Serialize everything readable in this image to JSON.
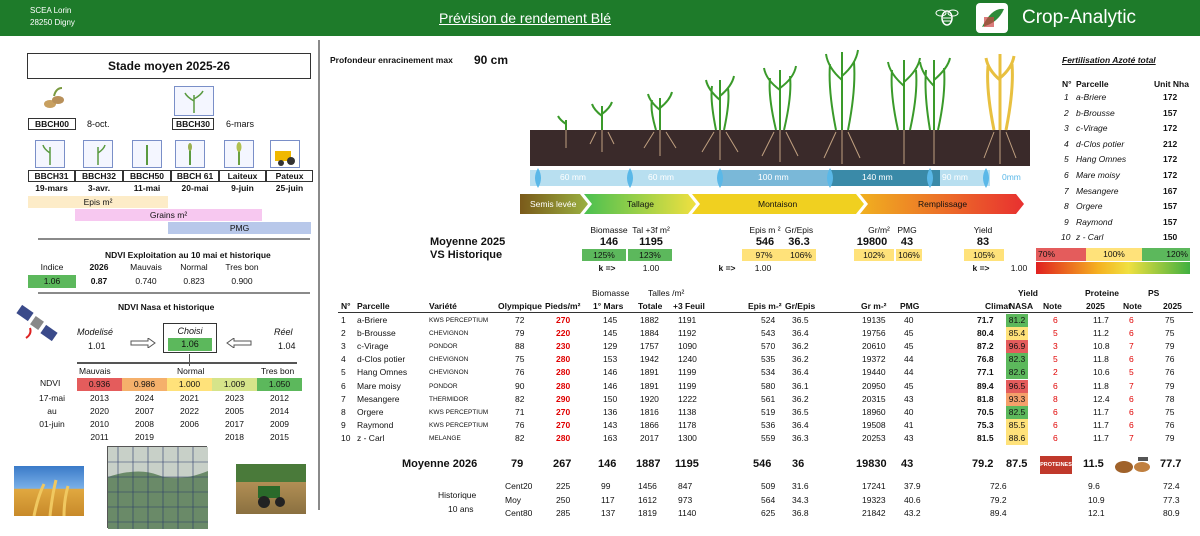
{
  "header": {
    "farm_name": "SCEA Lorin",
    "farm_address": "28250 Digny",
    "title": "Prévision de rendement  Blé",
    "brand": "Crop-Analytic"
  },
  "left": {
    "stage_title": "Stade moyen 2025-26",
    "bbch_top": [
      {
        "code": "BBCH00",
        "date": "8-oct."
      },
      {
        "code": "BBCH30",
        "date": "6-mars"
      }
    ],
    "bbch_row": [
      {
        "code": "BBCH31",
        "date": "19-mars"
      },
      {
        "code": "BBCH32",
        "date": "3-avr."
      },
      {
        "code": "BBCH50",
        "date": "11-mai"
      },
      {
        "code": "BBCH 61",
        "date": "20-mai"
      },
      {
        "code": "Laiteux",
        "date": "9-juin"
      },
      {
        "code": "Pateux",
        "date": "25-juin"
      }
    ],
    "phase_bars": [
      "Epis m²",
      "Grains m²",
      "PMG"
    ],
    "ndvi_title": "NDVI Exploitation au 10 mai et historique",
    "ndvi_headers": [
      "Indice",
      "2026",
      "Mauvais",
      "Normal",
      "Tres bon"
    ],
    "ndvi_values": [
      "1.06",
      "0.87",
      "0.740",
      "0.823",
      "0.900"
    ],
    "nasa_title": "NDVI Nasa  et historique",
    "modelise_label": "Modelisé",
    "modelise_value": "1.01",
    "choisi_label": "Choisi",
    "choisi_value": "1.06",
    "reel_label": "Réel",
    "reel_value": "1.04",
    "scale_labels": [
      "Mauvais",
      "Normal",
      "Tres bon"
    ],
    "ndvi_row_label": "NDVI",
    "ndvi_scale": [
      "0.936",
      "0.986",
      "1.000",
      "1.009",
      "1.050"
    ],
    "period_labels": [
      "17-mai",
      "au",
      "01-juin",
      "",
      ""
    ],
    "years": [
      [
        "2013",
        "2024",
        "2021",
        "2023",
        "2012"
      ],
      [
        "2020",
        "2007",
        "2022",
        "2005",
        "2014"
      ],
      [
        "2010",
        "2008",
        "2006",
        "2017",
        "2009"
      ],
      [
        "2011",
        "2019",
        "",
        "2018",
        "2015"
      ]
    ]
  },
  "center": {
    "root_label": "Profondeur enracinement max",
    "root_value": "90 cm",
    "water_mm": [
      "60 mm",
      "60 mm",
      "100 mm",
      "140 mm",
      "90 mm",
      "0mm"
    ],
    "phases": [
      "Semis levée",
      "Tallage",
      "Montaison",
      "Remplissage"
    ],
    "avg2025_label": "Moyenne 2025",
    "vs_label": "VS Historique",
    "k_label": "k =>",
    "summary_headers": {
      "biomasse": "Biomasse",
      "tal": "Tal +3f m²",
      "epis": "Epis m ²",
      "grepis": "Gr/Epis",
      "grm2": "Gr/m²",
      "pmg": "PMG",
      "yield": "Yield"
    },
    "summary_values": {
      "biomasse": "146",
      "tal": "1195",
      "epis": "546",
      "grepis": "36.3",
      "grm2": "19800",
      "pmg": "43",
      "yield": "83"
    },
    "summary_pct": {
      "biomasse": "125%",
      "tal": "123%",
      "epis": "97%",
      "grepis": "106%",
      "grm2": "102%",
      "pmg": "106%",
      "yield": "105%"
    },
    "k_values": [
      "1.00",
      "1.00",
      "1.00"
    ],
    "gradient_labels": [
      "70%",
      "100%",
      "120%"
    ],
    "table_group_headers": {
      "biomasse": "Biomasse",
      "talles": "Talles /m²",
      "yield": "Yield",
      "proteine": "Proteine",
      "ps": "PS"
    },
    "table_headers": [
      "N°",
      "Parcelle",
      "Variété",
      "Olympique",
      "Pieds/m²",
      "1° Mars",
      "Totale",
      "+3 Feuil",
      "Epis m-²",
      "Gr/Epis",
      "Gr m-²",
      "PMG",
      "Climat",
      "NASA",
      "Note",
      "2025",
      "Note",
      "2025"
    ],
    "rows": [
      [
        "1",
        "a-Briere",
        "KWS PERCEPTIUM",
        "72",
        "270",
        "145",
        "1882",
        "1191",
        "524",
        "36.5",
        "19135",
        "40",
        "71.7",
        "81.2",
        "6",
        "11.7",
        "6",
        "75"
      ],
      [
        "2",
        "b-Brousse",
        "CHEVIGNON",
        "79",
        "220",
        "145",
        "1884",
        "1192",
        "543",
        "36.4",
        "19756",
        "45",
        "80.4",
        "85.4",
        "5",
        "11.2",
        "6",
        "75"
      ],
      [
        "3",
        "c-Virage",
        "PONDOR",
        "88",
        "230",
        "129",
        "1757",
        "1090",
        "570",
        "36.2",
        "20610",
        "45",
        "87.2",
        "96.9",
        "3",
        "10.8",
        "7",
        "79"
      ],
      [
        "4",
        "d-Clos potier",
        "CHEVIGNON",
        "75",
        "280",
        "153",
        "1942",
        "1240",
        "535",
        "36.2",
        "19372",
        "44",
        "76.8",
        "82.3",
        "5",
        "11.8",
        "6",
        "76"
      ],
      [
        "5",
        "Hang Omnes",
        "CHEVIGNON",
        "76",
        "280",
        "146",
        "1891",
        "1199",
        "534",
        "36.4",
        "19440",
        "44",
        "77.1",
        "82.6",
        "2",
        "10.6",
        "5",
        "76"
      ],
      [
        "6",
        "Mare moisy",
        "PONDOR",
        "90",
        "280",
        "146",
        "1891",
        "1199",
        "580",
        "36.1",
        "20950",
        "45",
        "89.4",
        "96.5",
        "6",
        "11.8",
        "7",
        "79"
      ],
      [
        "7",
        "Mesangere",
        "THERMIDOR",
        "82",
        "290",
        "150",
        "1920",
        "1222",
        "561",
        "36.2",
        "20315",
        "43",
        "81.8",
        "93.3",
        "8",
        "12.4",
        "6",
        "78"
      ],
      [
        "8",
        "Orgere",
        "KWS PERCEPTIUM",
        "71",
        "270",
        "136",
        "1816",
        "1138",
        "519",
        "36.5",
        "18960",
        "40",
        "70.5",
        "82.5",
        "6",
        "11.7",
        "6",
        "75"
      ],
      [
        "9",
        "Raymond",
        "KWS PERCEPTIUM",
        "76",
        "270",
        "143",
        "1866",
        "1178",
        "536",
        "36.4",
        "19508",
        "41",
        "75.3",
        "85.5",
        "6",
        "11.7",
        "6",
        "76"
      ],
      [
        "10",
        "z - Carl",
        "MELANGE",
        "82",
        "280",
        "163",
        "2017",
        "1300",
        "559",
        "36.3",
        "20253",
        "43",
        "81.5",
        "88.6",
        "6",
        "11.7",
        "7",
        "79"
      ]
    ],
    "avg2026_label": "Moyenne 2026",
    "avg2026": [
      "79",
      "267",
      "146",
      "1887",
      "1195",
      "546",
      "36",
      "19830",
      "43",
      "79.2",
      "87.5",
      "11.5",
      "77.7"
    ],
    "proteines_badge": "PROTEINES",
    "hist_label": "Historique",
    "hist_sub": "10 ans",
    "hist_rows": [
      [
        "Cent20",
        "225",
        "99",
        "1456",
        "847",
        "509",
        "31.6",
        "17241",
        "37.9",
        "72.6",
        "9.6",
        "72.4"
      ],
      [
        "Moy",
        "250",
        "117",
        "1612",
        "973",
        "564",
        "34.3",
        "19323",
        "40.6",
        "79.2",
        "10.9",
        "77.3"
      ],
      [
        "Cent80",
        "285",
        "137",
        "1819",
        "1140",
        "625",
        "36.8",
        "21842",
        "43.2",
        "89.4",
        "12.1",
        "80.9"
      ]
    ]
  },
  "fert": {
    "title": "Fertilisation Azoté total",
    "headers": [
      "N°",
      "Parcelle",
      "Unit Nha"
    ],
    "rows": [
      [
        "1",
        "a-Briere",
        "172"
      ],
      [
        "2",
        "b-Brousse",
        "157"
      ],
      [
        "3",
        "c-Virage",
        "172"
      ],
      [
        "4",
        "d-Clos potier",
        "212"
      ],
      [
        "5",
        "Hang Omnes",
        "172"
      ],
      [
        "6",
        "Mare moisy",
        "172"
      ],
      [
        "7",
        "Mesangere",
        "167"
      ],
      [
        "8",
        "Orgere",
        "157"
      ],
      [
        "9",
        "Raymond",
        "157"
      ],
      [
        "10",
        "z - Carl",
        "150"
      ]
    ]
  },
  "colors": {
    "header_green": "#1e7b2a",
    "good_green": "#5cb85c",
    "bad_red": "#e45c5c",
    "orange": "#f5b06b",
    "yellow": "#ffe27a"
  }
}
